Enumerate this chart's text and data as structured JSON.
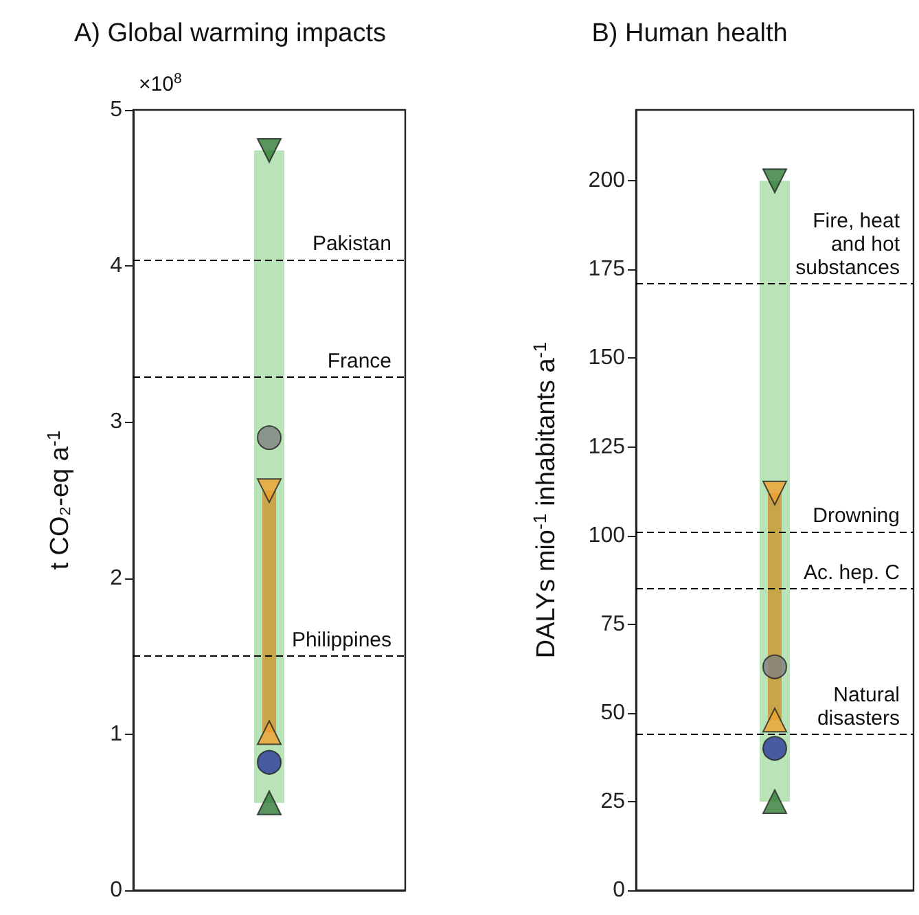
{
  "chart_data": [
    {
      "type": "scatter",
      "title": "A) Global warming impacts",
      "ylabel": "t CO₂-eq a$^{-1}$",
      "annotations": [
        "×10$^{8}$"
      ],
      "categories": [
        null
      ],
      "ylim": [
        0,
        5
      ],
      "yticks": [
        0,
        1,
        2,
        3,
        4,
        5
      ],
      "grid": false,
      "series": [
        {
          "type": "bar",
          "color": "#b8e4b8",
          "values": [
            4.18
          ],
          "base": [
            0.56
          ]
        },
        {
          "type": "bar",
          "color": "#c9a54a",
          "values": [
            1.55
          ],
          "base": [
            1.01
          ]
        },
        {
          "color": "#2f7a35",
          "marker": "triangle_down",
          "values": [
            4.74
          ]
        },
        {
          "color": "#808080",
          "marker": "circle",
          "values": [
            2.9
          ]
        },
        {
          "color": "#f0a030",
          "marker": "triangle_down",
          "values": [
            2.56
          ]
        },
        {
          "color": "#f0a030",
          "marker": "triangle",
          "values": [
            1.01
          ]
        },
        {
          "color": "#2b3a9a",
          "marker": "circle",
          "values": [
            0.82
          ]
        },
        {
          "color": "#2f7a35",
          "marker": "triangle",
          "values": [
            0.56
          ]
        }
      ],
      "ref_lines": [
        {
          "axis": "y",
          "value": 4.04,
          "label": "Pakistan",
          "line_style": "dashed",
          "color": "#000000"
        },
        {
          "axis": "y",
          "value": 3.29,
          "label": "France",
          "line_style": "dashed",
          "color": "#000000"
        },
        {
          "axis": "y",
          "value": 1.5,
          "label": "Philippines",
          "line_style": "dashed",
          "color": "#000000"
        }
      ]
    },
    {
      "type": "scatter",
      "title": "B) Human health",
      "ylabel": "DALYs mio$^{-1}$ inhabitants a$^{-1}$",
      "categories": [
        null
      ],
      "ylim": [
        0,
        220
      ],
      "yticks": [
        0,
        25,
        50,
        75,
        100,
        125,
        150,
        175,
        200
      ],
      "grid": false,
      "series": [
        {
          "type": "bar",
          "color": "#b8e4b8",
          "values": [
            175
          ],
          "base": [
            25
          ]
        },
        {
          "type": "bar",
          "color": "#c9a54a",
          "values": [
            64
          ],
          "base": [
            48
          ]
        },
        {
          "color": "#2f7a35",
          "marker": "triangle_down",
          "values": [
            200
          ]
        },
        {
          "color": "#808080",
          "marker": "circle",
          "values": [
            63
          ]
        },
        {
          "color": "#f0a030",
          "marker": "triangle_down",
          "values": [
            112
          ]
        },
        {
          "color": "#f0a030",
          "marker": "triangle",
          "values": [
            48
          ]
        },
        {
          "color": "#2b3a9a",
          "marker": "circle",
          "values": [
            40
          ]
        },
        {
          "color": "#2f7a35",
          "marker": "triangle",
          "values": [
            25
          ]
        }
      ],
      "ref_lines": [
        {
          "axis": "y",
          "value": 171,
          "label": "Fire, heat\nand hot\nsubstances",
          "line_style": "dashed",
          "color": "#000000"
        },
        {
          "axis": "y",
          "value": 101,
          "label": "Drowning",
          "line_style": "dashed",
          "color": "#000000"
        },
        {
          "axis": "y",
          "value": 85,
          "label": "Ac. hep. C",
          "line_style": "dashed",
          "color": "#000000"
        },
        {
          "axis": "y",
          "value": 44,
          "label": "Natural\ndisasters",
          "line_style": "dashed",
          "color": "#000000"
        }
      ]
    }
  ]
}
